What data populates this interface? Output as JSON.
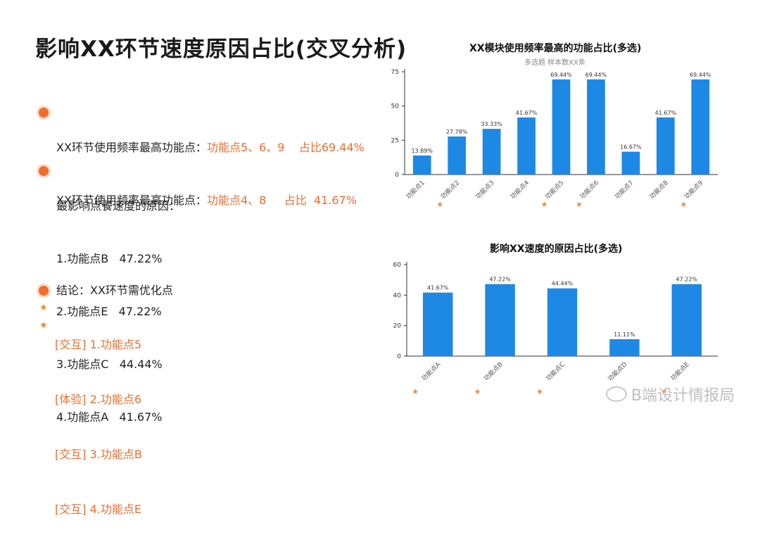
{
  "title": "影响XX环节速度原因占比(交叉分析)",
  "left": {
    "s1_line1_label": "XX环节使用频率最高功能点：",
    "s1_line1_value": "功能点5、6、9    占比69.44%",
    "s1_line2_label": "XX环节使用频率最高功能点：",
    "s1_line2_value": "功能点4、8     占比  41.67%",
    "s2_heading": "最影响点餐速度的原因：",
    "s2_items": [
      "1.功能点B   47.22%",
      "2.功能点E   47.22%",
      "3.功能点C   44.44%",
      "4.功能点A   41.67%"
    ],
    "s3_heading": "结论：XX环节需优化点",
    "s3_items": [
      "[交互] 1.功能点5",
      "[体验] 2.功能点6",
      "[交互] 3.功能点B",
      "[交互] 4.功能点E"
    ]
  },
  "watermark": "B端设计情报局",
  "colors": {
    "accent": "#ef6d2e",
    "bar": "#1e88e5",
    "star": "#f08a3c"
  },
  "chart_data": [
    {
      "type": "bar",
      "title": "XX模块使用频率最高的功能占比(多选)",
      "subtitle": "多选题   样本数XX条",
      "categories": [
        "功能点1",
        "功能点2",
        "功能点3",
        "功能点4",
        "功能点5",
        "功能点6",
        "功能点7",
        "功能点8",
        "功能点9"
      ],
      "values": [
        13.89,
        27.78,
        33.33,
        41.67,
        69.44,
        69.44,
        16.67,
        41.67,
        69.44
      ],
      "value_labels": [
        "13.89%",
        "27.78%",
        "33.33%",
        "41.67%",
        "69.44%",
        "69.44%",
        "16.67%",
        "41.67%",
        "69.44%"
      ],
      "starred": [
        false,
        true,
        false,
        false,
        true,
        true,
        false,
        false,
        true
      ],
      "yticks": [
        0,
        25,
        50,
        75
      ],
      "ylim": [
        0,
        75
      ],
      "grid": false
    },
    {
      "type": "bar",
      "title": "影响XX速度的原因占比(多选)",
      "categories": [
        "功能点A",
        "功能点B",
        "功能点C",
        "功能点D",
        "功能点E"
      ],
      "values": [
        41.67,
        47.22,
        44.44,
        11.11,
        47.22
      ],
      "value_labels": [
        "41.67%",
        "47.22%",
        "44.44%",
        "11.11%",
        "47.22%"
      ],
      "starred": [
        true,
        true,
        true,
        false,
        true
      ],
      "yticks": [
        0,
        20,
        40,
        60
      ],
      "ylim": [
        0,
        60
      ],
      "grid": false
    }
  ]
}
